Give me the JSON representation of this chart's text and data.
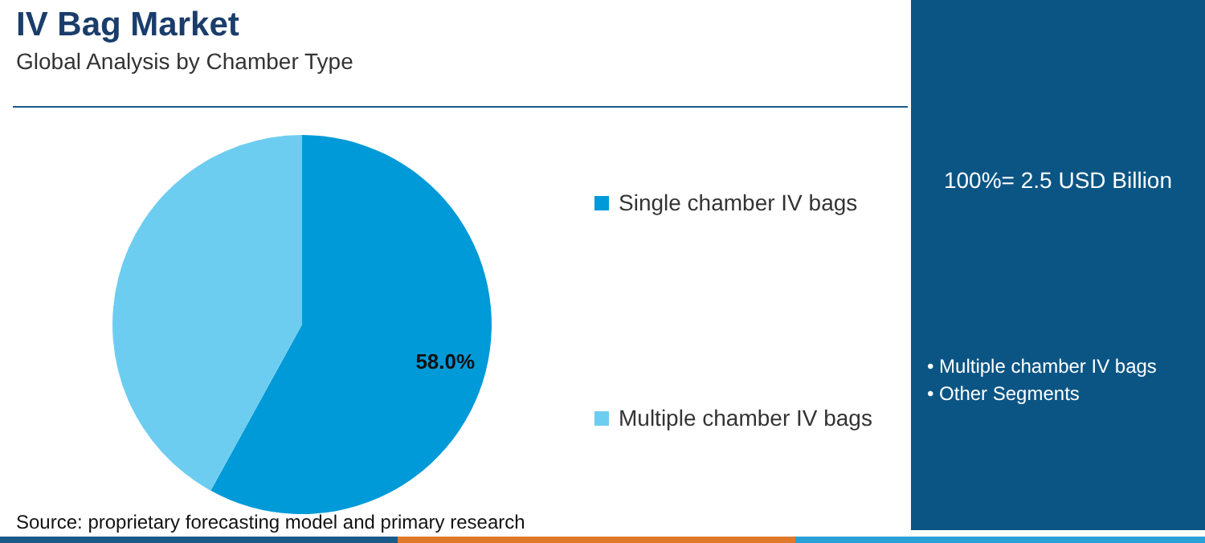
{
  "chart_data": {
    "type": "pie",
    "title": "IV Bag Market",
    "subtitle": "Global Analysis by Chamber Type",
    "categories": [
      "Single chamber IV bags",
      "Multiple chamber IV bags"
    ],
    "values": [
      58.0,
      42.0
    ],
    "colors": [
      "#009ad8",
      "#6dcdf0"
    ],
    "value_labels": [
      "58.0%",
      null
    ],
    "legend": "right",
    "annotations": [
      "100%= 2.5 USD Billion",
      "• Multiple chamber IV bags",
      "• Other Segments",
      "Source: proprietary forecasting model and primary research"
    ]
  }
}
